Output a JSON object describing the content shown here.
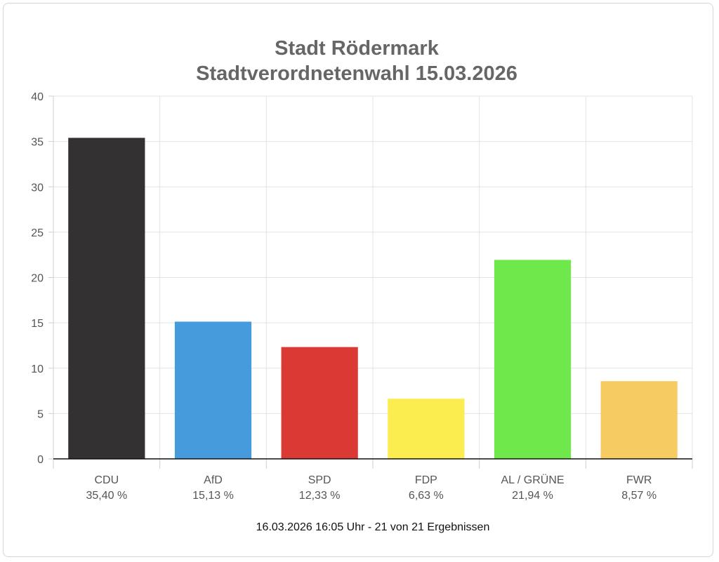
{
  "chart_data": {
    "type": "bar",
    "title": [
      "Stadt Rödermark",
      "Stadtverordnetenwahl 15.03.2026"
    ],
    "categories": [
      "CDU",
      "AfD",
      "SPD",
      "FDP",
      "AL / GRÜNE",
      "FWR"
    ],
    "value_labels": [
      "35,40 %",
      "15,13 %",
      "12,33 %",
      "6,63 %",
      "21,94 %",
      "8,57 %"
    ],
    "values": [
      35.4,
      15.13,
      12.33,
      6.63,
      21.94,
      8.57
    ],
    "colors": [
      "#333132",
      "#469bdc",
      "#db3a34",
      "#fbec4f",
      "#6ee84a",
      "#f5cb62"
    ],
    "ylim": [
      0,
      40
    ],
    "yticks": [
      0,
      5,
      10,
      15,
      20,
      25,
      30,
      35,
      40
    ],
    "grid": true,
    "footer": "16.03.2026 16:05 Uhr - 21 von 21 Ergebnissen"
  }
}
